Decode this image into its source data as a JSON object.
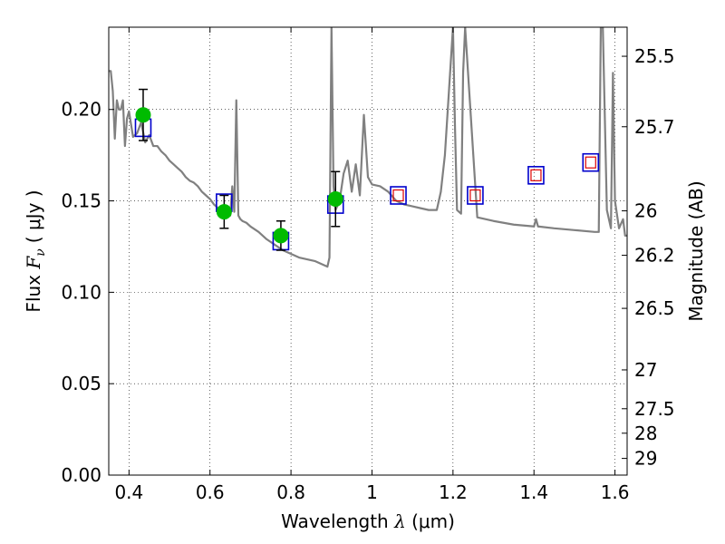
{
  "chart_data": {
    "type": "scatter",
    "xlabel": {
      "prefix": "Wavelength ",
      "symbol": "λ",
      "units": " (μm)"
    },
    "ylabel": {
      "prefix": "Flux ",
      "symbol": "F",
      "subscript": "ν",
      "units": "( μJy )"
    },
    "y2label": "Magnitude (AB)",
    "xlim": [
      0.35,
      1.63
    ],
    "ylim": [
      0.0,
      0.245
    ],
    "grid": true,
    "xticks": [
      {
        "v": 0.4,
        "label": "0.4"
      },
      {
        "v": 0.6,
        "label": "0.6"
      },
      {
        "v": 0.8,
        "label": "0.8"
      },
      {
        "v": 1.0,
        "label": "1"
      },
      {
        "v": 1.2,
        "label": "1.2"
      },
      {
        "v": 1.4,
        "label": "1.4"
      },
      {
        "v": 1.6,
        "label": "1.6"
      }
    ],
    "yticks": [
      {
        "v": 0.0,
        "label": "0.00"
      },
      {
        "v": 0.05,
        "label": "0.05"
      },
      {
        "v": 0.1,
        "label": "0.10"
      },
      {
        "v": 0.15,
        "label": "0.15"
      },
      {
        "v": 0.2,
        "label": "0.20"
      }
    ],
    "y2ticks": [
      {
        "mag": 25.5,
        "label": "25.5"
      },
      {
        "mag": 25.7,
        "label": "25.7"
      },
      {
        "mag": 26.0,
        "label": "26"
      },
      {
        "mag": 26.2,
        "label": "26.2"
      },
      {
        "mag": 26.5,
        "label": "26.5"
      },
      {
        "mag": 27.0,
        "label": "27"
      },
      {
        "mag": 27.5,
        "label": "27.5"
      },
      {
        "mag": 28.0,
        "label": "28"
      },
      {
        "mag": 29.0,
        "label": "29"
      }
    ],
    "series": [
      {
        "kind": "line",
        "color": "#808080",
        "x": [
          0.35,
          0.355,
          0.36,
          0.365,
          0.37,
          0.375,
          0.38,
          0.385,
          0.39,
          0.395,
          0.4,
          0.41,
          0.42,
          0.43,
          0.44,
          0.45,
          0.46,
          0.47,
          0.48,
          0.49,
          0.5,
          0.51,
          0.52,
          0.53,
          0.54,
          0.55,
          0.56,
          0.57,
          0.58,
          0.59,
          0.6,
          0.61,
          0.62,
          0.63,
          0.64,
          0.645,
          0.65,
          0.655,
          0.66,
          0.665,
          0.67,
          0.675,
          0.68,
          0.69,
          0.7,
          0.72,
          0.74,
          0.76,
          0.78,
          0.8,
          0.82,
          0.84,
          0.86,
          0.88,
          0.89,
          0.895,
          0.9,
          0.905,
          0.91,
          0.92,
          0.93,
          0.94,
          0.95,
          0.96,
          0.97,
          0.98,
          0.99,
          1.0,
          1.02,
          1.04,
          1.06,
          1.08,
          1.1,
          1.12,
          1.14,
          1.16,
          1.17,
          1.18,
          1.19,
          1.2,
          1.205,
          1.21,
          1.22,
          1.225,
          1.23,
          1.26,
          1.3,
          1.35,
          1.4,
          1.405,
          1.41,
          1.45,
          1.5,
          1.55,
          1.56,
          1.565,
          1.57,
          1.58,
          1.59,
          1.595,
          1.6,
          1.61,
          1.62,
          1.625,
          1.63
        ],
        "y": [
          0.221,
          0.221,
          0.21,
          0.184,
          0.205,
          0.2,
          0.2,
          0.205,
          0.18,
          0.195,
          0.199,
          0.185,
          0.187,
          0.193,
          0.182,
          0.186,
          0.18,
          0.18,
          0.177,
          0.175,
          0.172,
          0.17,
          0.168,
          0.166,
          0.163,
          0.161,
          0.16,
          0.158,
          0.155,
          0.153,
          0.151,
          0.148,
          0.146,
          0.145,
          0.143,
          0.145,
          0.142,
          0.158,
          0.144,
          0.205,
          0.142,
          0.14,
          0.139,
          0.138,
          0.136,
          0.133,
          0.129,
          0.126,
          0.123,
          0.121,
          0.119,
          0.118,
          0.117,
          0.115,
          0.114,
          0.119,
          0.245,
          0.158,
          0.145,
          0.15,
          0.165,
          0.172,
          0.155,
          0.17,
          0.153,
          0.197,
          0.163,
          0.159,
          0.158,
          0.155,
          0.15,
          0.148,
          0.147,
          0.146,
          0.145,
          0.145,
          0.155,
          0.175,
          0.21,
          0.245,
          0.19,
          0.145,
          0.143,
          0.22,
          0.245,
          0.141,
          0.139,
          0.137,
          0.136,
          0.14,
          0.136,
          0.135,
          0.134,
          0.133,
          0.133,
          0.245,
          0.245,
          0.145,
          0.135,
          0.22,
          0.15,
          0.135,
          0.14,
          0.131,
          0.131
        ]
      },
      {
        "kind": "photometry",
        "marker": "circle",
        "color": "#00bb00",
        "points": [
          {
            "x": 0.435,
            "y": 0.197,
            "err": 0.014
          },
          {
            "x": 0.635,
            "y": 0.144,
            "err": 0.009
          },
          {
            "x": 0.775,
            "y": 0.131,
            "err": 0.008
          },
          {
            "x": 0.91,
            "y": 0.151,
            "err": 0.015
          }
        ]
      },
      {
        "kind": "model",
        "marker": "square",
        "color": "#0000cc",
        "points": [
          {
            "x": 0.435,
            "y": 0.19
          },
          {
            "x": 0.635,
            "y": 0.149
          },
          {
            "x": 0.775,
            "y": 0.128
          },
          {
            "x": 0.91,
            "y": 0.148
          },
          {
            "x": 1.065,
            "y": 0.153
          },
          {
            "x": 1.255,
            "y": 0.153
          },
          {
            "x": 1.405,
            "y": 0.164
          },
          {
            "x": 1.54,
            "y": 0.171
          }
        ]
      },
      {
        "kind": "upper-limit",
        "marker": "square",
        "color": "#dd0000",
        "points": [
          {
            "x": 1.065,
            "y": 0.153
          },
          {
            "x": 1.255,
            "y": 0.153
          },
          {
            "x": 1.405,
            "y": 0.164
          },
          {
            "x": 1.54,
            "y": 0.171
          }
        ]
      }
    ]
  }
}
